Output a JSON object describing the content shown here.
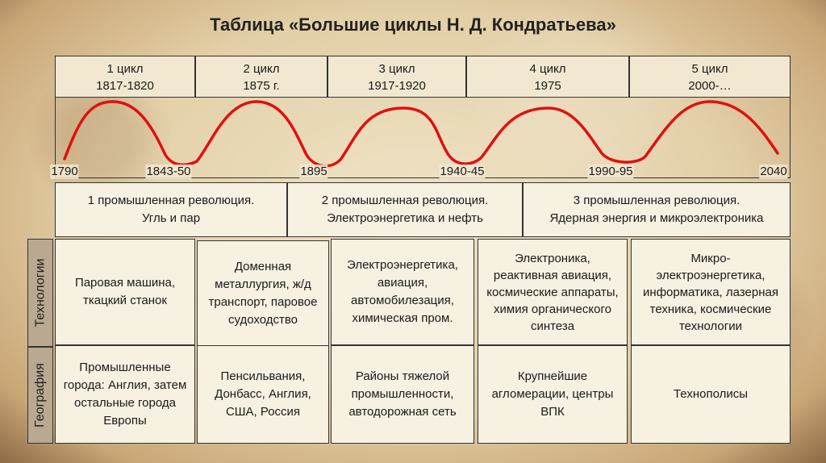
{
  "title": "Таблица «Большие циклы Н. Д. Кондратьева»",
  "cycles": [
    {
      "name": "1 цикл",
      "years": "1817-1820"
    },
    {
      "name": "2 цикл",
      "years": "1875 г."
    },
    {
      "name": "3 цикл",
      "years": "1917-1920"
    },
    {
      "name": "4 цикл",
      "years": "1975"
    },
    {
      "name": "5 цикл",
      "years": "2000-…"
    }
  ],
  "timeline_years": [
    "1790",
    "1843-50",
    "1895",
    "1940-45",
    "1990-95",
    "2040"
  ],
  "wave_color": "#e01010",
  "revolutions": [
    {
      "line1": "1 промышленная революция.",
      "line2": "Угль и пар"
    },
    {
      "line1": "2 промышленная революция.",
      "line2": "Электроэнергетика и нефть"
    },
    {
      "line1": "3 промышленная революция.",
      "line2": "Ядерная энергия и микроэлектроника"
    }
  ],
  "row_labels": {
    "technology": "Технологии",
    "geography": "География"
  },
  "technologies": [
    "Паровая машина, ткацкий станок",
    "Доменная металлургия, ж/д транспорт, паровое судоходство",
    "Электроэнергетика, авиация, автомобилезация, химическая пром.",
    "Электроника, реактивная авиация, космические аппараты, химия органического синтеза",
    "Микро-электроэнергетика, информатика, лазерная техника, космические технологии"
  ],
  "geography": [
    "Промышленные города: Англия, затем остальные города Европы",
    "Пенсильвания, Донбасс, Англия, США, Россия",
    "Районы тяжелой промышленности, автодорожная сеть",
    "Крупнейшие агломерации, центры ВПК",
    "Технополисы"
  ]
}
